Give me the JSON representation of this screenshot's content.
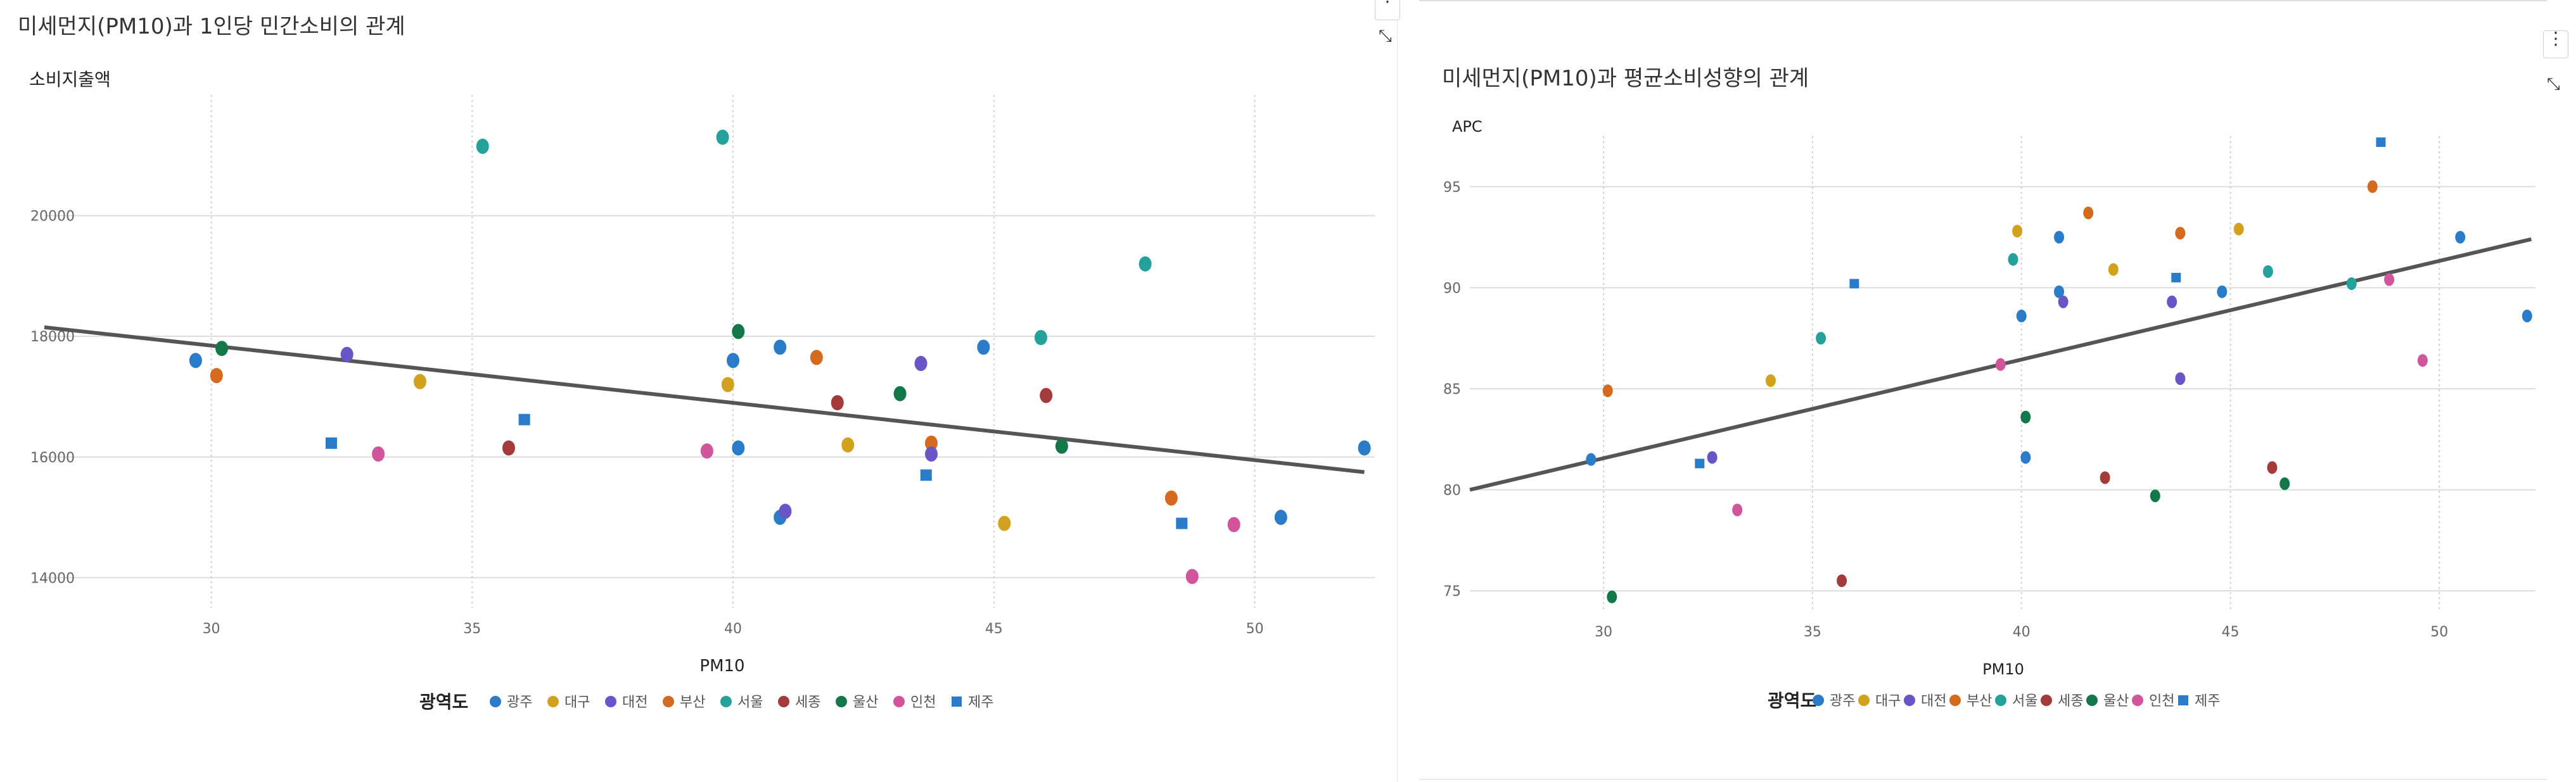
{
  "colors": {
    "광주": "#2a7cc8",
    "대구": "#d2a21f",
    "대전": "#6a55c7",
    "부산": "#d56a1f",
    "서울": "#23a19a",
    "세종": "#a33b3b",
    "울산": "#12784a",
    "인천": "#d1559b",
    "제주": "#2a7cc8",
    "trend": "#555555",
    "grid": "#dddddd"
  },
  "legend": {
    "title": "광역도",
    "items": [
      {
        "name": "광주",
        "shape": "circle"
      },
      {
        "name": "대구",
        "shape": "circle"
      },
      {
        "name": "대전",
        "shape": "circle"
      },
      {
        "name": "부산",
        "shape": "circle"
      },
      {
        "name": "서울",
        "shape": "circle"
      },
      {
        "name": "세종",
        "shape": "circle"
      },
      {
        "name": "울산",
        "shape": "circle"
      },
      {
        "name": "인천",
        "shape": "circle"
      },
      {
        "name": "제주",
        "shape": "square"
      }
    ]
  },
  "chart_data": [
    {
      "type": "scatter",
      "title": "미세먼지(PM10)과 1인당 민간소비의 관계",
      "xlabel": "PM10",
      "ylabel": "소비지출액",
      "xlim": [
        26.8,
        52.3
      ],
      "ylim": [
        13500,
        22000
      ],
      "xticks": [
        30,
        35,
        40,
        45,
        50
      ],
      "yticks": [
        14000,
        16000,
        18000,
        20000
      ],
      "grid": {
        "x": "dotted",
        "y": "solid"
      },
      "legend_position": "bottom",
      "trendline": {
        "x": [
          26.8,
          52.1
        ],
        "y": [
          18150,
          15750
        ]
      },
      "points": [
        {
          "x": 29.7,
          "y": 17600,
          "region": "광주"
        },
        {
          "x": 30.1,
          "y": 17350,
          "region": "부산"
        },
        {
          "x": 30.2,
          "y": 17800,
          "region": "울산"
        },
        {
          "x": 32.3,
          "y": 16230,
          "region": "제주"
        },
        {
          "x": 32.6,
          "y": 17700,
          "region": "대전"
        },
        {
          "x": 33.2,
          "y": 16050,
          "region": "인천"
        },
        {
          "x": 34.0,
          "y": 17250,
          "region": "대구"
        },
        {
          "x": 35.2,
          "y": 21150,
          "region": "서울"
        },
        {
          "x": 35.7,
          "y": 16150,
          "region": "세종"
        },
        {
          "x": 36.0,
          "y": 16620,
          "region": "제주"
        },
        {
          "x": 39.5,
          "y": 16100,
          "region": "인천"
        },
        {
          "x": 39.8,
          "y": 21300,
          "region": "서울"
        },
        {
          "x": 39.9,
          "y": 17200,
          "region": "대구"
        },
        {
          "x": 40.0,
          "y": 17600,
          "region": "광주"
        },
        {
          "x": 40.1,
          "y": 18080,
          "region": "울산"
        },
        {
          "x": 40.1,
          "y": 16150,
          "region": "광주"
        },
        {
          "x": 40.9,
          "y": 15000,
          "region": "광주"
        },
        {
          "x": 41.0,
          "y": 15100,
          "region": "대전"
        },
        {
          "x": 40.9,
          "y": 17820,
          "region": "광주"
        },
        {
          "x": 41.6,
          "y": 17650,
          "region": "부산"
        },
        {
          "x": 42.0,
          "y": 16900,
          "region": "세종"
        },
        {
          "x": 42.2,
          "y": 16200,
          "region": "대구"
        },
        {
          "x": 43.2,
          "y": 17050,
          "region": "울산"
        },
        {
          "x": 43.6,
          "y": 17550,
          "region": "대전"
        },
        {
          "x": 43.7,
          "y": 15700,
          "region": "제주"
        },
        {
          "x": 43.8,
          "y": 16230,
          "region": "부산"
        },
        {
          "x": 43.8,
          "y": 16050,
          "region": "대전"
        },
        {
          "x": 44.8,
          "y": 17820,
          "region": "광주"
        },
        {
          "x": 45.2,
          "y": 14900,
          "region": "대구"
        },
        {
          "x": 45.9,
          "y": 17980,
          "region": "서울"
        },
        {
          "x": 46.0,
          "y": 17020,
          "region": "세종"
        },
        {
          "x": 46.3,
          "y": 16180,
          "region": "울산"
        },
        {
          "x": 47.9,
          "y": 19200,
          "region": "서울"
        },
        {
          "x": 48.4,
          "y": 15320,
          "region": "부산"
        },
        {
          "x": 48.6,
          "y": 14900,
          "region": "제주"
        },
        {
          "x": 48.8,
          "y": 14020,
          "region": "인천"
        },
        {
          "x": 49.6,
          "y": 14880,
          "region": "인천"
        },
        {
          "x": 50.5,
          "y": 15000,
          "region": "광주"
        },
        {
          "x": 52.1,
          "y": 16150,
          "region": "광주"
        }
      ]
    },
    {
      "type": "scatter",
      "title": "미세먼지(PM10)과 평균소비성향의 관계",
      "xlabel": "PM10",
      "ylabel": "APC",
      "xlim": [
        26.8,
        52.3
      ],
      "ylim": [
        74,
        97.5
      ],
      "xticks": [
        30,
        35,
        40,
        45,
        50
      ],
      "yticks": [
        75,
        80,
        85,
        90,
        95
      ],
      "grid": {
        "x": "dotted",
        "y": "solid"
      },
      "legend_position": "bottom",
      "trendline": {
        "x": [
          26.8,
          52.2
        ],
        "y": [
          80.0,
          92.4
        ]
      },
      "points": [
        {
          "x": 29.7,
          "y": 81.5,
          "region": "광주"
        },
        {
          "x": 30.1,
          "y": 84.9,
          "region": "부산"
        },
        {
          "x": 30.2,
          "y": 74.7,
          "region": "울산"
        },
        {
          "x": 32.3,
          "y": 81.3,
          "region": "제주"
        },
        {
          "x": 32.6,
          "y": 81.6,
          "region": "대전"
        },
        {
          "x": 33.2,
          "y": 79.0,
          "region": "인천"
        },
        {
          "x": 34.0,
          "y": 85.4,
          "region": "대구"
        },
        {
          "x": 35.2,
          "y": 87.5,
          "region": "서울"
        },
        {
          "x": 35.7,
          "y": 75.5,
          "region": "세종"
        },
        {
          "x": 36.0,
          "y": 90.2,
          "region": "제주"
        },
        {
          "x": 39.5,
          "y": 86.2,
          "region": "인천"
        },
        {
          "x": 39.8,
          "y": 91.4,
          "region": "서울"
        },
        {
          "x": 39.9,
          "y": 92.8,
          "region": "대구"
        },
        {
          "x": 40.0,
          "y": 88.6,
          "region": "광주"
        },
        {
          "x": 40.1,
          "y": 83.6,
          "region": "울산"
        },
        {
          "x": 40.1,
          "y": 81.6,
          "region": "광주"
        },
        {
          "x": 40.9,
          "y": 89.8,
          "region": "광주"
        },
        {
          "x": 41.0,
          "y": 89.3,
          "region": "대전"
        },
        {
          "x": 40.9,
          "y": 92.5,
          "region": "광주"
        },
        {
          "x": 41.6,
          "y": 93.7,
          "region": "부산"
        },
        {
          "x": 42.0,
          "y": 80.6,
          "region": "세종"
        },
        {
          "x": 42.2,
          "y": 90.9,
          "region": "대구"
        },
        {
          "x": 43.2,
          "y": 79.7,
          "region": "울산"
        },
        {
          "x": 43.6,
          "y": 89.3,
          "region": "대전"
        },
        {
          "x": 43.7,
          "y": 90.5,
          "region": "제주"
        },
        {
          "x": 43.8,
          "y": 92.7,
          "region": "부산"
        },
        {
          "x": 43.8,
          "y": 85.5,
          "region": "대전"
        },
        {
          "x": 44.8,
          "y": 89.8,
          "region": "광주"
        },
        {
          "x": 45.2,
          "y": 92.9,
          "region": "대구"
        },
        {
          "x": 45.9,
          "y": 90.8,
          "region": "서울"
        },
        {
          "x": 46.0,
          "y": 81.1,
          "region": "세종"
        },
        {
          "x": 46.3,
          "y": 80.3,
          "region": "울산"
        },
        {
          "x": 47.9,
          "y": 90.2,
          "region": "서울"
        },
        {
          "x": 48.4,
          "y": 95.0,
          "region": "부산"
        },
        {
          "x": 48.6,
          "y": 97.2,
          "region": "제주"
        },
        {
          "x": 48.8,
          "y": 90.4,
          "region": "인천"
        },
        {
          "x": 49.6,
          "y": 86.4,
          "region": "인천"
        },
        {
          "x": 50.5,
          "y": 92.5,
          "region": "광주"
        },
        {
          "x": 52.1,
          "y": 88.6,
          "region": "광주"
        }
      ]
    }
  ],
  "controls": {
    "menu_glyph": "⋮",
    "collapse_glyph": "⤡"
  }
}
